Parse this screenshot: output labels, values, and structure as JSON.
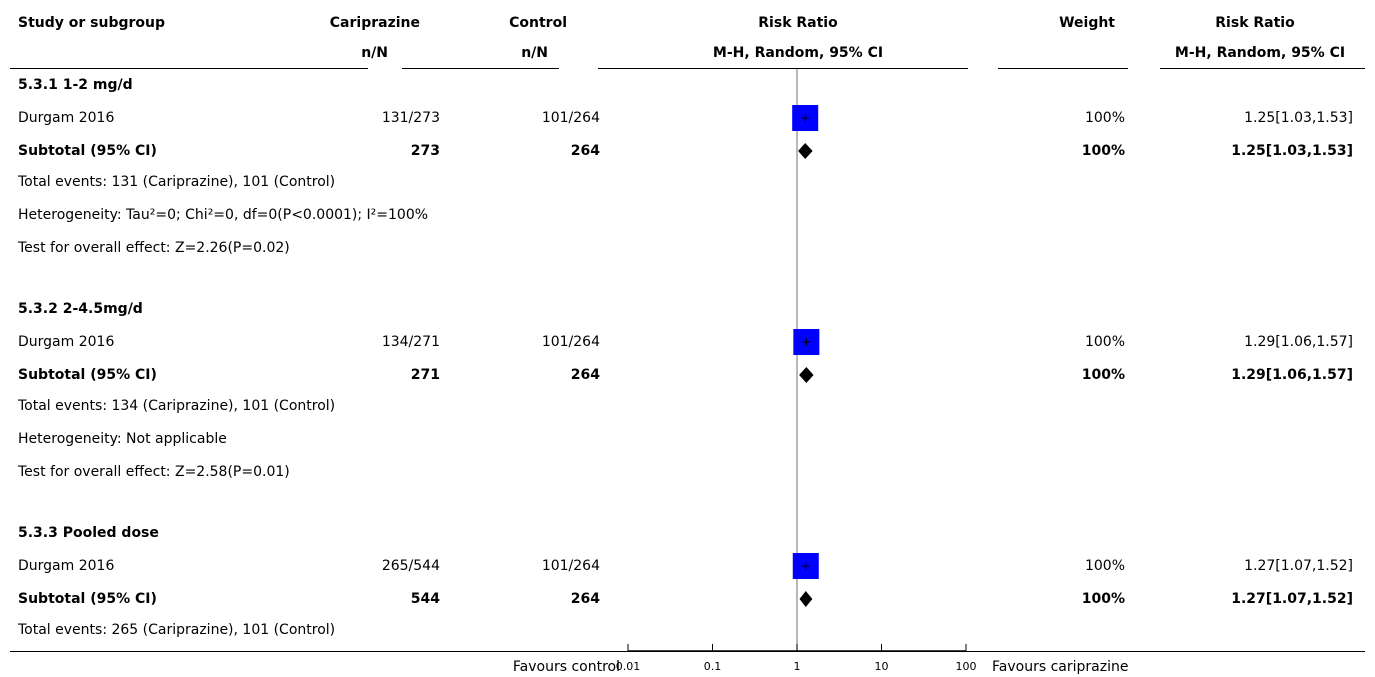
{
  "headers": {
    "study": "Study or subgroup",
    "treat": "Cariprazine",
    "treat_sub": "n/N",
    "control": "Control",
    "control_sub": "n/N",
    "rr": "Risk Ratio",
    "rr_sub": "M-H, Random, 95% CI",
    "weight": "Weight",
    "rr2": "Risk Ratio",
    "rr2_sub": "M-H, Random, 95% CI"
  },
  "groups": [
    {
      "title": "5.3.1 1-2 mg/d",
      "study": {
        "name": "Durgam 2016",
        "treat": "131/273",
        "control": "101/264",
        "weight": "100%",
        "ci": "1.25[1.03,1.53]"
      },
      "subtotal": {
        "label": "Subtotal (95% CI)",
        "treat": "273",
        "control": "264",
        "weight": "100%",
        "ci": "1.25[1.03,1.53]"
      },
      "notes": [
        "Total events: 131 (Cariprazine), 101 (Control)",
        "Heterogeneity: Tau²=0; Chi²=0, df=0(P<0.0001); I²=100%",
        "Test for overall effect: Z=2.26(P=0.02)"
      ]
    },
    {
      "title": "5.3.2 2-4.5mg/d",
      "study": {
        "name": "Durgam 2016",
        "treat": "134/271",
        "control": "101/264",
        "weight": "100%",
        "ci": "1.29[1.06,1.57]"
      },
      "subtotal": {
        "label": "Subtotal (95% CI)",
        "treat": "271",
        "control": "264",
        "weight": "100%",
        "ci": "1.29[1.06,1.57]"
      },
      "notes": [
        "Total events: 134 (Cariprazine), 101 (Control)",
        "Heterogeneity: Not applicable",
        "Test for overall effect: Z=2.58(P=0.01)"
      ]
    },
    {
      "title": "5.3.3 Pooled dose",
      "study": {
        "name": "Durgam 2016",
        "treat": "265/544",
        "control": "101/264",
        "weight": "100%",
        "ci": "1.27[1.07,1.52]"
      },
      "subtotal": {
        "label": "Subtotal (95% CI)",
        "treat": "544",
        "control": "264",
        "weight": "100%",
        "ci": "1.27[1.07,1.52]"
      },
      "notes": [
        "Total events: 265 (Cariprazine), 101 (Control)"
      ]
    }
  ],
  "axis": {
    "left_label": "Favours control",
    "right_label": "Favours cariprazine",
    "ticks": [
      "0.01",
      "0.1",
      "1",
      "10",
      "100"
    ]
  },
  "colors": {
    "study_box": "#0000ff",
    "diamond": "#000000"
  },
  "chart_data": {
    "type": "forest",
    "x_scale": "log",
    "xlim": [
      0.01,
      100
    ],
    "reference_line": 1,
    "points": [
      {
        "group": "5.3.1 1-2 mg/d",
        "kind": "study",
        "rr": 1.25,
        "lo": 1.03,
        "hi": 1.53,
        "weight": 100
      },
      {
        "group": "5.3.1 1-2 mg/d",
        "kind": "subtotal",
        "rr": 1.25,
        "lo": 1.03,
        "hi": 1.53
      },
      {
        "group": "5.3.2 2-4.5mg/d",
        "kind": "study",
        "rr": 1.29,
        "lo": 1.06,
        "hi": 1.57,
        "weight": 100
      },
      {
        "group": "5.3.2 2-4.5mg/d",
        "kind": "subtotal",
        "rr": 1.29,
        "lo": 1.06,
        "hi": 1.57
      },
      {
        "group": "5.3.3 Pooled dose",
        "kind": "study",
        "rr": 1.27,
        "lo": 1.07,
        "hi": 1.52,
        "weight": 100
      },
      {
        "group": "5.3.3 Pooled dose",
        "kind": "subtotal",
        "rr": 1.27,
        "lo": 1.07,
        "hi": 1.52
      }
    ]
  }
}
